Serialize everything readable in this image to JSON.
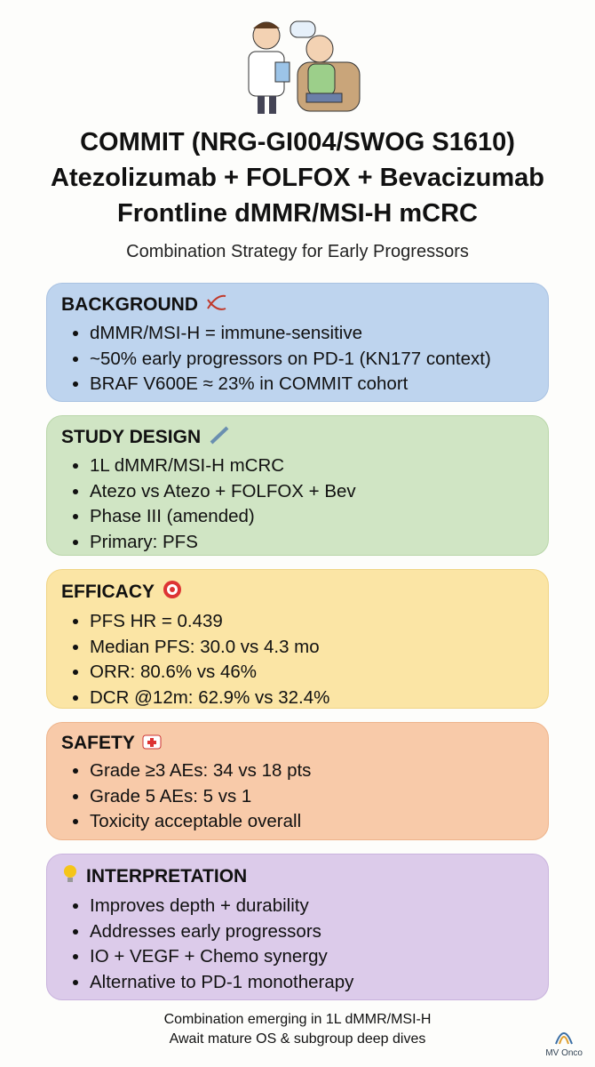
{
  "header": {
    "title_lines": [
      "COMMIT (NRG-GI004/SWOG S1610)",
      "Atezolizumab + FOLFOX + Bevacizumab",
      "Frontline dMMR/MSI-H mCRC"
    ],
    "subtitle": "Combination Strategy for Early Progressors"
  },
  "sections": [
    {
      "title": "BACKGROUND",
      "items": [
        "dMMR/MSI-H = immune-sensitive",
        "~50% early progressors on PD-1 (KN177 context)",
        "BRAF V600E ≈ 23% in COMMIT cohort"
      ]
    },
    {
      "title": "STUDY DESIGN",
      "items": [
        "1L dMMR/MSI-H mCRC",
        "Atezo vs Atezo + FOLFOX + Bev",
        "Phase III (amended)",
        "Primary: PFS"
      ]
    },
    {
      "title": "EFFICACY",
      "items": [
        "PFS HR = 0.439",
        "Median PFS: 30.0 vs 4.3 mo",
        "ORR: 80.6% vs 46%",
        "DCR @12m: 62.9% vs 32.4%"
      ]
    },
    {
      "title": "SAFETY",
      "items": [
        "Grade ≥3 AEs: 34 vs 18 pts",
        "Grade 5 AEs: 5 vs 1",
        "Toxicity acceptable overall"
      ]
    },
    {
      "title": "INTERPRETATION",
      "items": [
        "Improves depth + durability",
        "Addresses early progressors",
        "IO + VEGF + Chemo synergy",
        "Alternative to PD-1 monotherapy"
      ]
    }
  ],
  "footer": {
    "lines": [
      "Combination emerging in 1L dMMR/MSI-H",
      "Await mature OS & subgroup deep dives"
    ],
    "brand": "MV Onco"
  }
}
